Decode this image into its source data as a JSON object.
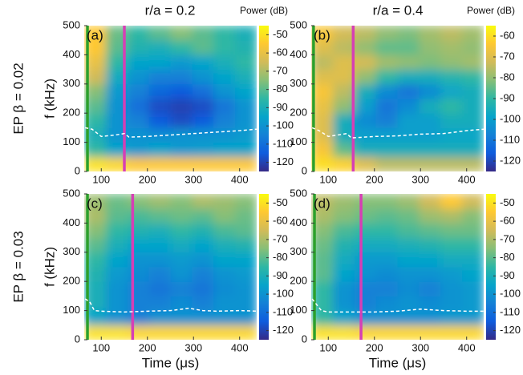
{
  "figure": {
    "column_titles": [
      "r/a = 0.2",
      "r/a = 0.4"
    ],
    "row_labels": [
      "EP β = 0.02",
      "EP β = 0.03"
    ],
    "colorscale": [
      "#352a87",
      "#0f5cdd",
      "#1481d6",
      "#06a4ca",
      "#2eb7a4",
      "#87bf77",
      "#d1bb59",
      "#fec832",
      "#f9fb0e"
    ]
  },
  "chart_data": [
    {
      "type": "heatmap",
      "label": "(a)",
      "ylabel": "f (kHz)",
      "colorbar_label": "Power (dB)",
      "xlim": [
        63,
        437
      ],
      "ylim": [
        0,
        500
      ],
      "xticks": [
        100,
        200,
        300,
        400
      ],
      "yticks": [
        0,
        100,
        200,
        300,
        400,
        500
      ],
      "zlim": [
        -125,
        -45
      ],
      "zticks": [
        -50,
        -60,
        -70,
        -80,
        -90,
        -100,
        -110,
        -120
      ],
      "xbins": [
        63,
        110,
        157,
        203,
        250,
        297,
        343,
        390,
        437
      ],
      "ybins": [
        0,
        50,
        100,
        150,
        200,
        250,
        300,
        350,
        400,
        450,
        500
      ],
      "z": [
        [
          -50,
          -52,
          -55,
          -55,
          -55,
          -55,
          -55,
          -55
        ],
        [
          -85,
          -95,
          -98,
          -95,
          -98,
          -97,
          -95,
          -95
        ],
        [
          -90,
          -100,
          -100,
          -102,
          -100,
          -100,
          -100,
          -98
        ],
        [
          -85,
          -100,
          -105,
          -115,
          -118,
          -115,
          -105,
          -100
        ],
        [
          -80,
          -100,
          -110,
          -118,
          -120,
          -118,
          -108,
          -100
        ],
        [
          -75,
          -98,
          -105,
          -112,
          -115,
          -110,
          -100,
          -95
        ],
        [
          -65,
          -92,
          -100,
          -105,
          -105,
          -100,
          -95,
          -90
        ],
        [
          -60,
          -85,
          -95,
          -95,
          -98,
          -95,
          -90,
          -85
        ],
        [
          -55,
          -80,
          -88,
          -90,
          -85,
          -80,
          -85,
          -88
        ],
        [
          -55,
          -78,
          -85,
          -80,
          -75,
          -80,
          -85,
          -90
        ]
      ],
      "lines": [
        {
          "color": "#ffffff",
          "dash": true,
          "x": [
            65,
            80,
            100,
            130,
            150,
            160,
            200,
            250,
            300,
            350,
            400,
            437
          ],
          "y": [
            150,
            145,
            120,
            125,
            130,
            118,
            120,
            125,
            130,
            135,
            140,
            145
          ]
        }
      ],
      "vlines": [
        {
          "color": "#2ca02c",
          "x": 70
        },
        {
          "color": "#d63fb5",
          "x": 150
        }
      ]
    },
    {
      "type": "heatmap",
      "label": "(b)",
      "colorbar_label": "Power (dB)",
      "xlim": [
        63,
        437
      ],
      "ylim": [
        0,
        500
      ],
      "xticks": [
        100,
        200,
        300,
        400
      ],
      "yticks": [
        0,
        100,
        200,
        300,
        400,
        500
      ],
      "zlim": [
        -125,
        -55
      ],
      "zticks": [
        -60,
        -70,
        -80,
        -90,
        -100,
        -110,
        -120
      ],
      "xbins": [
        63,
        110,
        157,
        203,
        250,
        297,
        343,
        390,
        437
      ],
      "ybins": [
        0,
        50,
        100,
        150,
        200,
        250,
        300,
        350,
        400,
        450,
        500
      ],
      "z": [
        [
          -60,
          -62,
          -70,
          -75,
          -75,
          -75,
          -75,
          -75
        ],
        [
          -65,
          -85,
          -95,
          -95,
          -95,
          -95,
          -95,
          -95
        ],
        [
          -70,
          -95,
          -100,
          -100,
          -100,
          -100,
          -98,
          -98
        ],
        [
          -70,
          -95,
          -105,
          -108,
          -100,
          -100,
          -95,
          -95
        ],
        [
          -68,
          -80,
          -100,
          -110,
          -105,
          -95,
          -90,
          -95
        ],
        [
          -65,
          -75,
          -95,
          -105,
          -110,
          -105,
          -98,
          -95
        ],
        [
          -70,
          -70,
          -80,
          -90,
          -95,
          -95,
          -92,
          -90
        ],
        [
          -75,
          -70,
          -72,
          -78,
          -80,
          -82,
          -80,
          -78
        ],
        [
          -70,
          -75,
          -80,
          -85,
          -85,
          -80,
          -78,
          -80
        ],
        [
          -65,
          -72,
          -75,
          -80,
          -82,
          -78,
          -75,
          -78
        ]
      ],
      "lines": [
        {
          "color": "#ffffff",
          "dash": true,
          "x": [
            65,
            80,
            100,
            120,
            140,
            150,
            200,
            250,
            300,
            350,
            400,
            437
          ],
          "y": [
            150,
            140,
            120,
            125,
            130,
            115,
            120,
            122,
            128,
            130,
            140,
            145
          ]
        }
      ],
      "vlines": [
        {
          "color": "#2ca02c",
          "x": 68
        },
        {
          "color": "#d63fb5",
          "x": 154
        }
      ]
    },
    {
      "type": "heatmap",
      "label": "(c)",
      "ylabel": "f (kHz)",
      "xlabel": "Time (μs)",
      "xlim": [
        63,
        437
      ],
      "ylim": [
        0,
        500
      ],
      "xticks": [
        100,
        200,
        300,
        400
      ],
      "yticks": [
        0,
        100,
        200,
        300,
        400,
        500
      ],
      "zlim": [
        -125,
        -45
      ],
      "zticks": [
        -50,
        -60,
        -70,
        -80,
        -90,
        -100,
        -110,
        -120
      ],
      "xbins": [
        63,
        110,
        157,
        203,
        250,
        297,
        343,
        390,
        437
      ],
      "ybins": [
        0,
        50,
        100,
        150,
        200,
        250,
        300,
        350,
        400,
        450,
        500
      ],
      "z": [
        [
          -50,
          -50,
          -52,
          -52,
          -52,
          -52,
          -52,
          -52
        ],
        [
          -95,
          -100,
          -105,
          -100,
          -100,
          -100,
          -100,
          -100
        ],
        [
          -90,
          -100,
          -105,
          -105,
          -102,
          -105,
          -100,
          -100
        ],
        [
          -90,
          -100,
          -105,
          -108,
          -105,
          -108,
          -102,
          -100
        ],
        [
          -88,
          -98,
          -102,
          -105,
          -100,
          -105,
          -100,
          -98
        ],
        [
          -85,
          -95,
          -100,
          -100,
          -98,
          -100,
          -95,
          -95
        ],
        [
          -80,
          -90,
          -95,
          -95,
          -92,
          -95,
          -90,
          -88
        ],
        [
          -75,
          -85,
          -88,
          -90,
          -85,
          -88,
          -82,
          -80
        ],
        [
          -70,
          -80,
          -82,
          -80,
          -78,
          -80,
          -75,
          -78
        ],
        [
          -72,
          -78,
          -75,
          -72,
          -75,
          -70,
          -72,
          -75
        ]
      ],
      "lines": [
        {
          "color": "#ffffff",
          "dash": true,
          "x": [
            65,
            75,
            85,
            100,
            150,
            200,
            250,
            290,
            320,
            350,
            400,
            437
          ],
          "y": [
            140,
            130,
            100,
            98,
            95,
            98,
            100,
            108,
            100,
            98,
            100,
            98
          ]
        }
      ],
      "vlines": [
        {
          "color": "#2ca02c",
          "x": 70
        },
        {
          "color": "#d63fb5",
          "x": 168
        }
      ]
    },
    {
      "type": "heatmap",
      "label": "(d)",
      "xlabel": "Time (μs)",
      "xlim": [
        63,
        437
      ],
      "ylim": [
        0,
        500
      ],
      "xticks": [
        100,
        200,
        300,
        400
      ],
      "yticks": [
        0,
        100,
        200,
        300,
        400,
        500
      ],
      "zlim": [
        -125,
        -45
      ],
      "zticks": [
        -50,
        -60,
        -70,
        -80,
        -90,
        -100,
        -110,
        -120
      ],
      "xbins": [
        63,
        110,
        157,
        203,
        250,
        297,
        343,
        390,
        437
      ],
      "ybins": [
        0,
        50,
        100,
        150,
        200,
        250,
        300,
        350,
        400,
        450,
        500
      ],
      "z": [
        [
          -50,
          -50,
          -52,
          -52,
          -52,
          -52,
          -52,
          -52
        ],
        [
          -85,
          -95,
          -100,
          -100,
          -100,
          -100,
          -98,
          -98
        ],
        [
          -85,
          -100,
          -105,
          -102,
          -100,
          -102,
          -100,
          -98
        ],
        [
          -85,
          -100,
          -105,
          -105,
          -102,
          -105,
          -100,
          -98
        ],
        [
          -80,
          -95,
          -100,
          -102,
          -100,
          -100,
          -98,
          -95
        ],
        [
          -80,
          -92,
          -98,
          -98,
          -95,
          -95,
          -92,
          -92
        ],
        [
          -78,
          -88,
          -92,
          -92,
          -90,
          -88,
          -85,
          -85
        ],
        [
          -75,
          -82,
          -85,
          -85,
          -82,
          -80,
          -78,
          -78
        ],
        [
          -70,
          -75,
          -78,
          -80,
          -78,
          -72,
          -70,
          -75
        ],
        [
          -68,
          -72,
          -75,
          -75,
          -72,
          -65,
          -55,
          -65
        ]
      ],
      "lines": [
        {
          "color": "#ffffff",
          "dash": true,
          "x": [
            65,
            75,
            85,
            100,
            150,
            200,
            250,
            300,
            350,
            400,
            437
          ],
          "y": [
            140,
            120,
            100,
            95,
            95,
            95,
            98,
            105,
            100,
            98,
            98
          ]
        }
      ],
      "vlines": [
        {
          "color": "#2ca02c",
          "x": 70
        },
        {
          "color": "#d63fb5",
          "x": 171
        }
      ]
    }
  ]
}
